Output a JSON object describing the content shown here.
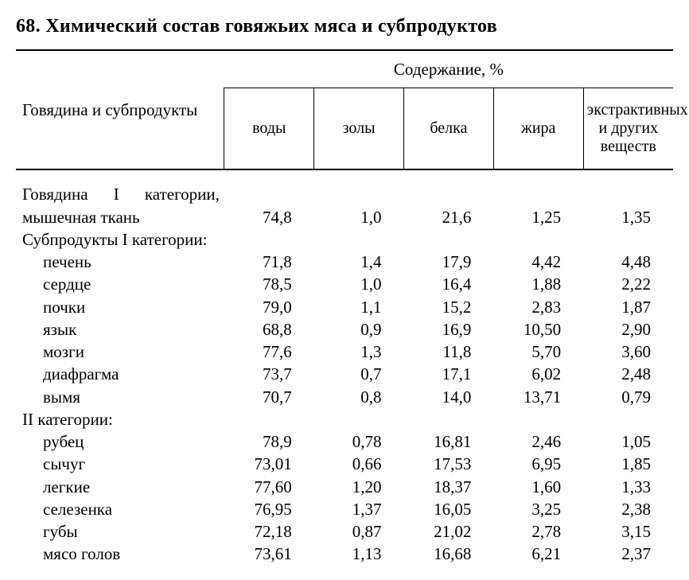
{
  "title": "68. Химический состав говяжьих мяса и субпродуктов",
  "header": {
    "rowhead": "Говядина и субпродукты",
    "spanner": "Содержание, %",
    "cols": [
      "воды",
      "золы",
      "белка",
      "жира",
      "экстрактивных и других веществ"
    ]
  },
  "rows": [
    {
      "type": "data",
      "indent": false,
      "justify": true,
      "label_lines": [
        "Говядина I категории,",
        "мышечная ткань"
      ],
      "values": [
        "74,8",
        "1,0",
        "21,6",
        "1,25",
        "1,35"
      ]
    },
    {
      "type": "group",
      "indent": false,
      "label_lines": [
        "Субпродукты I категории:"
      ]
    },
    {
      "type": "data",
      "indent": true,
      "label_lines": [
        "печень"
      ],
      "values": [
        "71,8",
        "1,4",
        "17,9",
        "4,42",
        "4,48"
      ]
    },
    {
      "type": "data",
      "indent": true,
      "label_lines": [
        "сердце"
      ],
      "values": [
        "78,5",
        "1,0",
        "16,4",
        "1,88",
        "2,22"
      ]
    },
    {
      "type": "data",
      "indent": true,
      "label_lines": [
        "почки"
      ],
      "values": [
        "79,0",
        "1,1",
        "15,2",
        "2,83",
        "1,87"
      ]
    },
    {
      "type": "data",
      "indent": true,
      "label_lines": [
        "язык"
      ],
      "values": [
        "68,8",
        "0,9",
        "16,9",
        "10,50",
        "2,90"
      ]
    },
    {
      "type": "data",
      "indent": true,
      "label_lines": [
        "мозги"
      ],
      "values": [
        "77,6",
        "1,3",
        "11,8",
        "5,70",
        "3,60"
      ]
    },
    {
      "type": "data",
      "indent": true,
      "label_lines": [
        "диафрагма"
      ],
      "values": [
        "73,7",
        "0,7",
        "17,1",
        "6,02",
        "2,48"
      ]
    },
    {
      "type": "data",
      "indent": true,
      "label_lines": [
        "вымя"
      ],
      "values": [
        "70,7",
        "0,8",
        "14,0",
        "13,71",
        "0,79"
      ]
    },
    {
      "type": "group",
      "indent": false,
      "label_lines": [
        "II категории:"
      ]
    },
    {
      "type": "data",
      "indent": true,
      "label_lines": [
        "рубец"
      ],
      "values": [
        "78,9",
        "0,78",
        "16,81",
        "2,46",
        "1,05"
      ]
    },
    {
      "type": "data",
      "indent": true,
      "label_lines": [
        "сычуг"
      ],
      "values": [
        "73,01",
        "0,66",
        "17,53",
        "6,95",
        "1,85"
      ]
    },
    {
      "type": "data",
      "indent": true,
      "label_lines": [
        "легкие"
      ],
      "values": [
        "77,60",
        "1,20",
        "18,37",
        "1,60",
        "1,33"
      ]
    },
    {
      "type": "data",
      "indent": true,
      "label_lines": [
        "селезенка"
      ],
      "values": [
        "76,95",
        "1,37",
        "16,05",
        "3,25",
        "2,38"
      ]
    },
    {
      "type": "data",
      "indent": true,
      "label_lines": [
        "губы"
      ],
      "values": [
        "72,18",
        "0,87",
        "21,02",
        "2,78",
        "3,15"
      ]
    },
    {
      "type": "data",
      "indent": true,
      "label_lines": [
        "мясо голов"
      ],
      "values": [
        "73,61",
        "1,13",
        "16,68",
        "6,21",
        "2,37"
      ]
    }
  ]
}
